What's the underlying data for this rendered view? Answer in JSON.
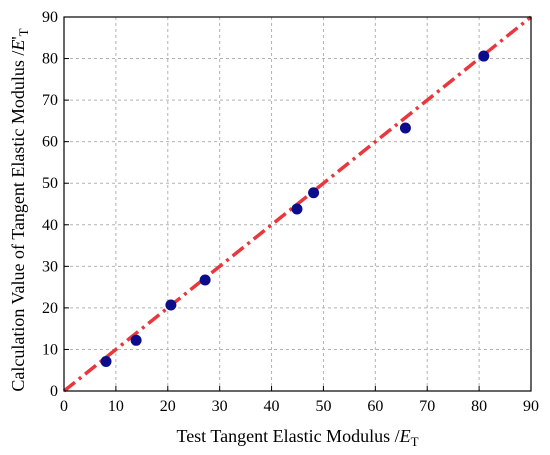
{
  "chart_data": {
    "type": "scatter",
    "title": "",
    "xlabel": {
      "main": "Test Tangent Elastic Modulus /",
      "var": "E",
      "sub": "T"
    },
    "ylabel": {
      "main": "Calculation Value of Tangent Elastic Modulus /",
      "var": "E",
      "prime": "'",
      "sub": "T"
    },
    "xlim": [
      0,
      90
    ],
    "ylim": [
      0,
      90
    ],
    "xticks": [
      0,
      10,
      20,
      30,
      40,
      50,
      60,
      70,
      80,
      90
    ],
    "yticks": [
      0,
      10,
      20,
      30,
      40,
      50,
      60,
      70,
      80,
      90
    ],
    "grid": true,
    "points": {
      "color": "#0d0d8c",
      "x": [
        8.1,
        13.9,
        20.6,
        27.2,
        44.9,
        48.1,
        65.8,
        80.9
      ],
      "y": [
        7.1,
        12.2,
        20.7,
        26.7,
        43.8,
        47.7,
        63.3,
        80.6
      ]
    },
    "reference_line": {
      "color": "#e8383d",
      "style": "dash-dot",
      "x": [
        0,
        90
      ],
      "y": [
        0,
        90
      ]
    }
  }
}
